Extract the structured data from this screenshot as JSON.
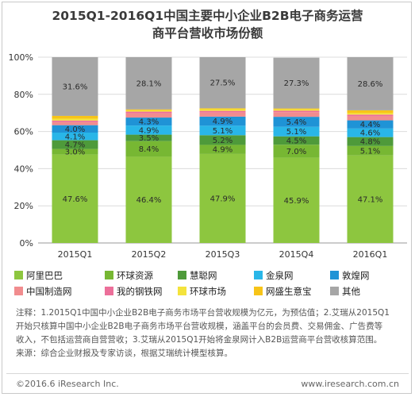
{
  "title_line1": "2015Q1-2016Q1中国主要中小企业B2B电子商务运营",
  "title_line2": "商平台营收市场份额",
  "chart_data": {
    "type": "bar",
    "stacked": true,
    "categories": [
      "2015Q1",
      "2015Q2",
      "2015Q3",
      "2015Q4",
      "2016Q1"
    ],
    "ylim": [
      0,
      100
    ],
    "yticks": [
      "0%",
      "20%",
      "40%",
      "60%",
      "80%",
      "100%"
    ],
    "grid": true,
    "legend_position": "bottom",
    "series": [
      {
        "name": "阿里巴巴",
        "color": "#8dc63f",
        "values": [
          47.6,
          46.4,
          47.9,
          45.9,
          47.1
        ],
        "labels": [
          "47.6%",
          "46.4%",
          "47.9%",
          "45.9%",
          "47.1%"
        ]
      },
      {
        "name": "环球资源",
        "color": "#77b733",
        "values": [
          3.0,
          8.4,
          4.9,
          7.0,
          5.1
        ],
        "labels": [
          "3.0%",
          "8.4%",
          "4.9%",
          "7.0%",
          "5.1%"
        ]
      },
      {
        "name": "慧聪网",
        "color": "#4e9a3a",
        "values": [
          4.7,
          3.5,
          5.2,
          4.5,
          4.8
        ],
        "labels": [
          "4.7%",
          "3.5%",
          "5.2%",
          "4.5%",
          "4.8%"
        ]
      },
      {
        "name": "金泉网",
        "color": "#29b6e8",
        "values": [
          4.1,
          4.9,
          5.1,
          5.1,
          4.6
        ],
        "labels": [
          "4.1%",
          "4.9%",
          "5.1%",
          "5.1%",
          "4.6%"
        ]
      },
      {
        "name": "敦煌网",
        "color": "#1f93d6",
        "values": [
          4.0,
          4.3,
          4.9,
          5.4,
          4.4
        ],
        "labels": [
          "4.0%",
          "4.3%",
          "4.9%",
          "5.4%",
          "4.4%"
        ]
      },
      {
        "name": "中国制造网",
        "color": "#f18c8e",
        "values": [
          1.7,
          2.3,
          2.2,
          2.5,
          2.2
        ],
        "labels": [
          "",
          "",
          "",
          "",
          ""
        ]
      },
      {
        "name": "我的钢铁网",
        "color": "#ec6f9a",
        "values": [
          0.8,
          0.9,
          0.9,
          0.8,
          0.9
        ],
        "labels": [
          "",
          "",
          "",
          "",
          ""
        ]
      },
      {
        "name": "环球市场",
        "color": "#f4e33c",
        "values": [
          1.0,
          0.7,
          0.9,
          0.7,
          0.8
        ],
        "labels": [
          "",
          "",
          "",
          "",
          ""
        ]
      },
      {
        "name": "网盛生意宝",
        "color": "#f7c418",
        "values": [
          1.5,
          0.5,
          0.5,
          0.5,
          1.5
        ],
        "labels": [
          "",
          "",
          "",
          "",
          ""
        ]
      },
      {
        "name": "其他",
        "color": "#a6a6a6",
        "values": [
          31.6,
          28.1,
          27.5,
          27.3,
          28.6
        ],
        "labels": [
          "31.6%",
          "28.1%",
          "27.5%",
          "27.3%",
          "28.6%"
        ]
      }
    ]
  },
  "notes": {
    "line1": "注释：1.2015Q1中国中小企业B2B电子商务市场平台营收规模为亿元，为预估值；2.艾瑞从2015Q1",
    "line2": "开始只核算中国中小企业B2B电子商务市场平台营收规模，涵盖平台的会员费、交易佣金、广告费等",
    "line3": "收入，不包括运营商自营营收；3.艾瑞从2015Q1开始将金泉网计入B2B运营商平台营收核算范围。",
    "source": "来源：综合企业财报及专家访谈，根据艾瑞统计模型核算。"
  },
  "footer": {
    "copyright": "©2016.6 iResearch Inc.",
    "website": "www.iresearch.com.cn"
  }
}
